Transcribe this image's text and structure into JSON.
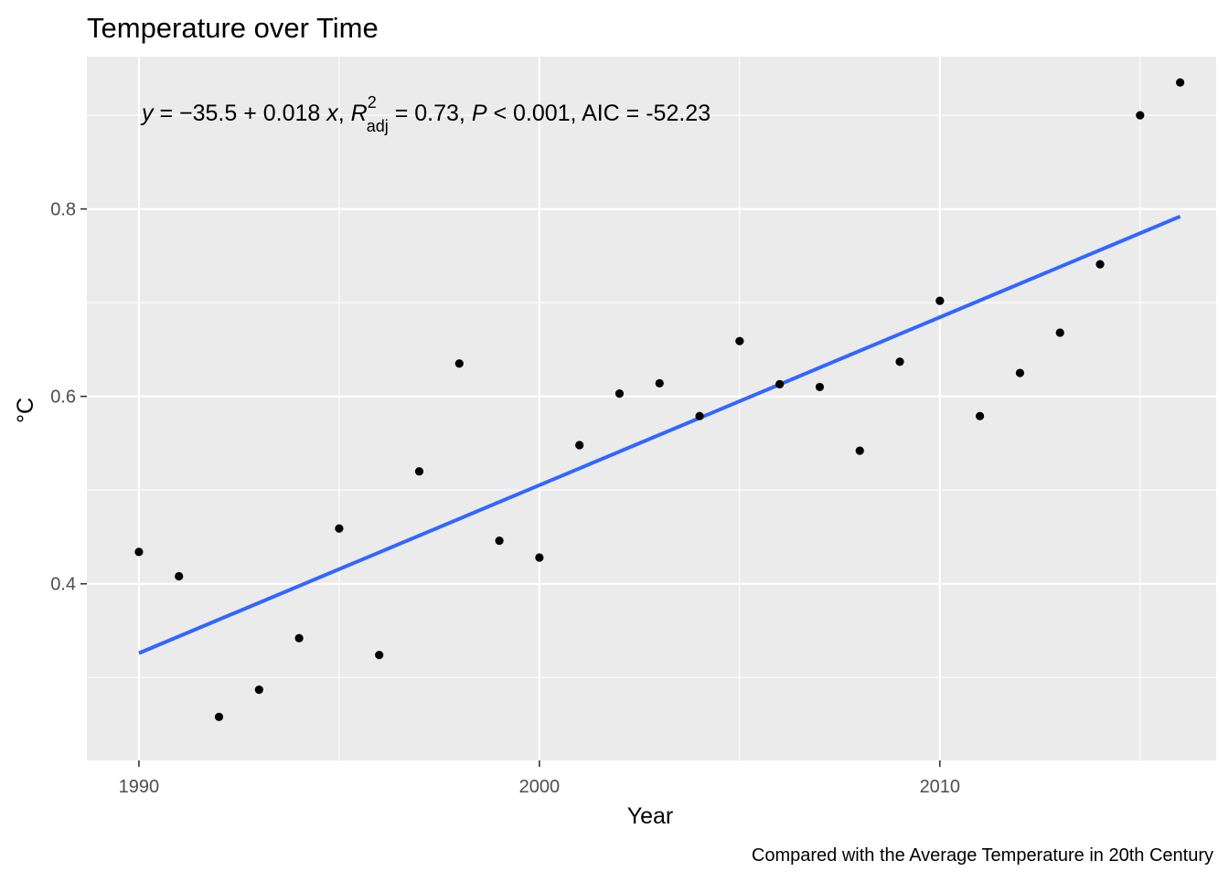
{
  "chart_data": {
    "type": "scatter",
    "title": "Temperature over Time",
    "xlabel": "Year",
    "ylabel": "°C",
    "caption": "Compared with the Average Temperature in 20th Century",
    "xlim": [
      1988.7,
      2016.9
    ],
    "ylim": [
      0.2115,
      0.9625
    ],
    "xticks": [
      1990,
      2000,
      2010
    ],
    "yticks": [
      0.4,
      0.6,
      0.8
    ],
    "xtick_labels": [
      "1990",
      "2000",
      "2010"
    ],
    "ytick_labels": [
      "0.4",
      "0.6",
      "0.8"
    ],
    "grid": true,
    "points": {
      "x": [
        1990,
        1991,
        1992,
        1993,
        1994,
        1995,
        1996,
        1997,
        1998,
        1999,
        2000,
        2001,
        2002,
        2003,
        2004,
        2005,
        2006,
        2007,
        2008,
        2009,
        2010,
        2011,
        2012,
        2013,
        2014,
        2015,
        2016
      ],
      "y": [
        0.434,
        0.408,
        0.258,
        0.287,
        0.342,
        0.459,
        0.324,
        0.52,
        0.635,
        0.446,
        0.428,
        0.548,
        0.603,
        0.614,
        0.579,
        0.659,
        0.613,
        0.61,
        0.542,
        0.637,
        0.702,
        0.579,
        0.625,
        0.668,
        0.741,
        0.9,
        0.935
      ],
      "color": "#000000"
    },
    "fit_line": {
      "x": [
        1990,
        2016
      ],
      "y": [
        0.326,
        0.792
      ],
      "color": "#3366FF"
    },
    "annotation": {
      "y_symbol": "y",
      "eq_part1": " = −35.5 + 0.018 ",
      "x_symbol": "x",
      "sep1": ", ",
      "r_symbol": "R",
      "r_sup": "2",
      "r_sub": "adj",
      "r_value": " = 0.73, ",
      "p_symbol": "P",
      "p_value": " < 0.001, AIC = -52.23"
    },
    "colors": {
      "panel_background": "#EBEBEB",
      "grid": "#FFFFFF",
      "tick_label": "#4D4D4D"
    }
  }
}
